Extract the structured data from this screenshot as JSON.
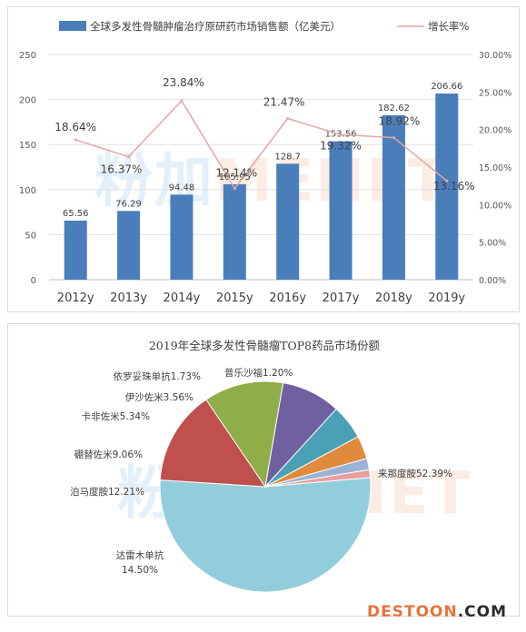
{
  "chart_data": [
    {
      "type": "bar+line",
      "title": "",
      "categories": [
        "2012y",
        "2013y",
        "2014y",
        "2015y",
        "2016y",
        "2017y",
        "2018y",
        "2019y"
      ],
      "series": [
        {
          "name": "全球多发性骨髓肿瘤治疗原研药市场销售额（亿美元）",
          "type": "bar",
          "axis": "left",
          "color": "#4a7ebb",
          "values": [
            65.56,
            76.29,
            94.48,
            105.95,
            128.7,
            153.56,
            182.62,
            206.66
          ],
          "labels": [
            "65.56",
            "76.29",
            "94.48",
            "105.95",
            "128.7",
            "153.56",
            "182.62",
            "206.66"
          ]
        },
        {
          "name": "增长率%",
          "type": "line",
          "axis": "right",
          "color": "#e3a6a6",
          "values": [
            18.64,
            16.37,
            23.84,
            12.14,
            21.47,
            19.32,
            18.92,
            13.16
          ],
          "labels": [
            "18.64%",
            "16.37%",
            "23.84%",
            "12.14%",
            "21.47%",
            "19.32%",
            "18.92%",
            "13.16%"
          ]
        }
      ],
      "left_axis": {
        "min": 0,
        "max": 250,
        "ticks": [
          "0",
          "50",
          "100",
          "150",
          "200",
          "250"
        ]
      },
      "right_axis": {
        "min": 0,
        "max": 30,
        "ticks": [
          "0.00%",
          "5.00%",
          "10.00%",
          "15.00%",
          "20.00%",
          "25.00%",
          "30.00%"
        ]
      },
      "grid": true,
      "legend": "top"
    },
    {
      "type": "pie",
      "title": "2019年全球多发性骨髓瘤TOP8药品市场份额",
      "slices": [
        {
          "name": "来那度胺",
          "value": 52.39,
          "label": "来那度胺52.39%",
          "color": "#92cddc"
        },
        {
          "name": "达雷木单抗",
          "value": 14.5,
          "label_lines": [
            "达雷木单抗",
            "14.50%"
          ],
          "color": "#c0504d"
        },
        {
          "name": "泊马度胺",
          "value": 12.21,
          "label": "泊马度胺12.21%",
          "color": "#8fad48"
        },
        {
          "name": "硼替佐米",
          "value": 9.06,
          "label": "硼替佐米9.06%",
          "color": "#7060a0"
        },
        {
          "name": "卡非佐米",
          "value": 5.34,
          "label": "卡非佐米5.34%",
          "color": "#4aa0b4"
        },
        {
          "name": "伊沙佐米",
          "value": 3.56,
          "label": "伊沙佐米3.56%",
          "color": "#e08a3c"
        },
        {
          "name": "依罗妥珠单抗",
          "value": 1.73,
          "label": "依罗妥珠单抗1.73%",
          "color": "#9bb2d6"
        },
        {
          "name": "普乐沙福",
          "value": 1.2,
          "label": "普乐沙福1.20%",
          "color": "#e6a0a0"
        }
      ]
    }
  ],
  "watermark": {
    "part1": "粉加",
    "part2": "MENET"
  },
  "footer": {
    "part1": "DESTOON",
    "part2": ".COM"
  }
}
